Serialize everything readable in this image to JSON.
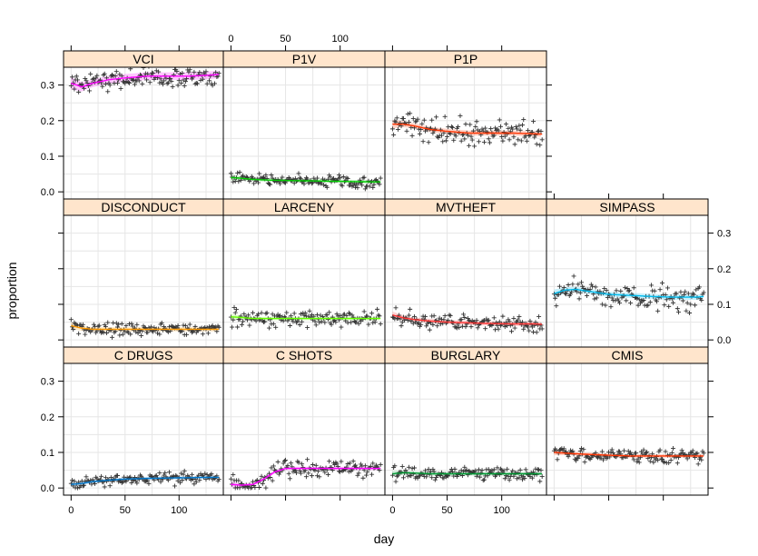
{
  "chart_data": {
    "type": "scatter",
    "layout": "lattice, 4 columns x 3 rows, panel strip titles on top",
    "xlabel": "day",
    "ylabel": "proportion",
    "xlim": [
      -7,
      141
    ],
    "x_ticks": [
      0,
      50,
      100
    ],
    "y_ticks": [
      0.0,
      0.1,
      0.2,
      0.3
    ],
    "grid": true,
    "point_marker": "+",
    "colors": {
      "strip": "#ffe5cc",
      "grid": "#e6e6e6",
      "points": "#333333",
      "VCI": "#ff00ff",
      "P1V": "#00cc00",
      "P1P": "#ff3300",
      "DISCONDUCT": "#ff9900",
      "LARCENY": "#66ff00",
      "MVTHEFT": "#ff3333",
      "SIMPASS": "#00bbee",
      "C_DRUGS": "#0077cc",
      "C_SHOTS": "#ff00ff",
      "BURGLARY": "#009933",
      "CMIS": "#ff3300"
    },
    "panels": [
      {
        "name": "VCI",
        "row": 1,
        "col": 1,
        "ylim": [
          -0.02,
          0.35
        ],
        "smooth_x": [
          0,
          10,
          20,
          35,
          50,
          70,
          90,
          110,
          130,
          137
        ],
        "smooth_y": [
          0.305,
          0.295,
          0.305,
          0.315,
          0.32,
          0.325,
          0.325,
          0.325,
          0.328,
          0.33
        ],
        "band": 0.018,
        "spread": 0.025,
        "seed": 1
      },
      {
        "name": "P1V",
        "row": 1,
        "col": 2,
        "ylim": [
          -0.02,
          0.35
        ],
        "smooth_x": [
          0,
          10,
          20,
          35,
          50,
          70,
          90,
          110,
          130,
          137
        ],
        "smooth_y": [
          0.04,
          0.038,
          0.035,
          0.033,
          0.032,
          0.031,
          0.03,
          0.029,
          0.028,
          0.028
        ],
        "band": 0.008,
        "spread": 0.015,
        "seed": 2
      },
      {
        "name": "P1P",
        "row": 1,
        "col": 3,
        "ylim": [
          -0.02,
          0.35
        ],
        "smooth_x": [
          0,
          10,
          20,
          35,
          50,
          70,
          90,
          110,
          130,
          137
        ],
        "smooth_y": [
          0.19,
          0.19,
          0.185,
          0.175,
          0.17,
          0.165,
          0.165,
          0.165,
          0.163,
          0.162
        ],
        "band": 0.012,
        "spread": 0.03,
        "seed": 3
      },
      {
        "name": "DISCONDUCT",
        "row": 2,
        "col": 1,
        "ylim": [
          -0.02,
          0.35
        ],
        "smooth_x": [
          0,
          10,
          20,
          35,
          50,
          70,
          90,
          110,
          130,
          137
        ],
        "smooth_y": [
          0.04,
          0.033,
          0.03,
          0.03,
          0.03,
          0.03,
          0.03,
          0.03,
          0.03,
          0.03
        ],
        "band": 0.01,
        "spread": 0.014,
        "seed": 4
      },
      {
        "name": "LARCENY",
        "row": 2,
        "col": 2,
        "ylim": [
          -0.02,
          0.35
        ],
        "smooth_x": [
          0,
          10,
          20,
          35,
          50,
          70,
          90,
          110,
          130,
          137
        ],
        "smooth_y": [
          0.065,
          0.063,
          0.06,
          0.06,
          0.06,
          0.06,
          0.06,
          0.06,
          0.06,
          0.06
        ],
        "band": 0.008,
        "spread": 0.018,
        "seed": 5
      },
      {
        "name": "MVTHEFT",
        "row": 2,
        "col": 3,
        "ylim": [
          -0.02,
          0.35
        ],
        "smooth_x": [
          0,
          10,
          20,
          35,
          50,
          70,
          90,
          110,
          130,
          137
        ],
        "smooth_y": [
          0.07,
          0.062,
          0.057,
          0.053,
          0.05,
          0.048,
          0.046,
          0.045,
          0.045,
          0.044
        ],
        "band": 0.01,
        "spread": 0.018,
        "seed": 6
      },
      {
        "name": "SIMPASS",
        "row": 2,
        "col": 4,
        "ylim": [
          -0.02,
          0.35
        ],
        "smooth_x": [
          0,
          10,
          20,
          35,
          50,
          70,
          90,
          110,
          130,
          137
        ],
        "smooth_y": [
          0.13,
          0.14,
          0.142,
          0.135,
          0.128,
          0.125,
          0.122,
          0.12,
          0.12,
          0.122
        ],
        "band": 0.012,
        "spread": 0.03,
        "seed": 7
      },
      {
        "name": "C_DRUGS",
        "row": 3,
        "col": 1,
        "ylim": [
          -0.02,
          0.35
        ],
        "smooth_x": [
          0,
          10,
          20,
          35,
          50,
          70,
          90,
          110,
          130,
          137
        ],
        "smooth_y": [
          0.01,
          0.013,
          0.018,
          0.022,
          0.025,
          0.027,
          0.028,
          0.029,
          0.03,
          0.03
        ],
        "band": 0.007,
        "spread": 0.014,
        "seed": 8
      },
      {
        "name": "C_SHOTS",
        "row": 3,
        "col": 2,
        "ylim": [
          -0.02,
          0.35
        ],
        "smooth_x": [
          0,
          10,
          20,
          30,
          40,
          50,
          60,
          80,
          100,
          120,
          137
        ],
        "smooth_y": [
          0.01,
          0.008,
          0.01,
          0.025,
          0.045,
          0.055,
          0.055,
          0.055,
          0.055,
          0.055,
          0.055
        ],
        "band": 0.008,
        "spread": 0.022,
        "seed": 9
      },
      {
        "name": "BURGLARY",
        "row": 3,
        "col": 3,
        "ylim": [
          -0.02,
          0.35
        ],
        "smooth_x": [
          0,
          10,
          20,
          35,
          50,
          70,
          90,
          110,
          130,
          137
        ],
        "smooth_y": [
          0.04,
          0.043,
          0.042,
          0.04,
          0.04,
          0.04,
          0.04,
          0.04,
          0.04,
          0.04
        ],
        "band": 0.008,
        "spread": 0.015,
        "seed": 10
      },
      {
        "name": "CMIS",
        "row": 3,
        "col": 4,
        "ylim": [
          -0.02,
          0.35
        ],
        "smooth_x": [
          0,
          10,
          20,
          35,
          50,
          70,
          90,
          110,
          130,
          137
        ],
        "smooth_y": [
          0.1,
          0.098,
          0.096,
          0.094,
          0.092,
          0.09,
          0.09,
          0.09,
          0.09,
          0.09
        ],
        "band": 0.008,
        "spread": 0.018,
        "seed": 11
      }
    ]
  }
}
